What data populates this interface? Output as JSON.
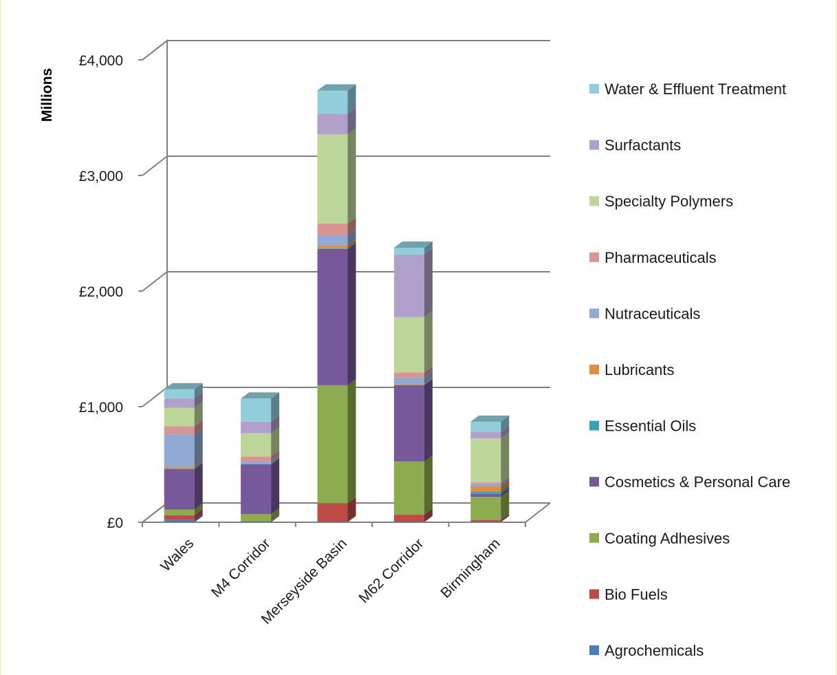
{
  "chart_data": {
    "type": "bar",
    "stacked": true,
    "three_d": true,
    "ylabel": "Millions",
    "ylim": [
      0,
      4000
    ],
    "y_ticks": [
      0,
      1000,
      2000,
      3000,
      4000
    ],
    "y_tick_labels": [
      "£0",
      "£1,000",
      "£2,000",
      "£3,000",
      "£4,000"
    ],
    "grid": true,
    "legend_position": "right",
    "categories": [
      "Wales",
      "M4 Corridor",
      "Merseyside Basin",
      "M62 Corridor",
      "Birmingham"
    ],
    "series": [
      {
        "name": "Agrochemicals",
        "color": "#4a7ebb",
        "values": [
          20,
          5,
          5,
          5,
          5
        ]
      },
      {
        "name": "Bio Fuels",
        "color": "#be4b48",
        "values": [
          40,
          5,
          160,
          60,
          15
        ]
      },
      {
        "name": "Coating Adhesives",
        "color": "#8cac4f",
        "values": [
          50,
          60,
          1020,
          460,
          200
        ]
      },
      {
        "name": "Cosmetics & Personal Care",
        "color": "#76589b",
        "values": [
          350,
          430,
          1180,
          660,
          25
        ]
      },
      {
        "name": "Essential Oils",
        "color": "#37a2bd",
        "values": [
          5,
          5,
          5,
          5,
          20
        ]
      },
      {
        "name": "Lubricants",
        "color": "#e68b3c",
        "values": [
          15,
          5,
          25,
          5,
          45
        ]
      },
      {
        "name": "Nutraceuticals",
        "color": "#93a9d5",
        "values": [
          280,
          20,
          90,
          60,
          25
        ]
      },
      {
        "name": "Pharmaceuticals",
        "color": "#d99593",
        "values": [
          70,
          40,
          100,
          40,
          10
        ]
      },
      {
        "name": "Specialty Polymers",
        "color": "#bcd69a",
        "values": [
          160,
          200,
          770,
          480,
          380
        ]
      },
      {
        "name": "Surfactants",
        "color": "#b1a0c9",
        "values": [
          80,
          100,
          180,
          540,
          55
        ]
      },
      {
        "name": "Water & Effluent Treatment",
        "color": "#92cddc",
        "values": [
          80,
          200,
          200,
          60,
          90
        ]
      }
    ]
  }
}
